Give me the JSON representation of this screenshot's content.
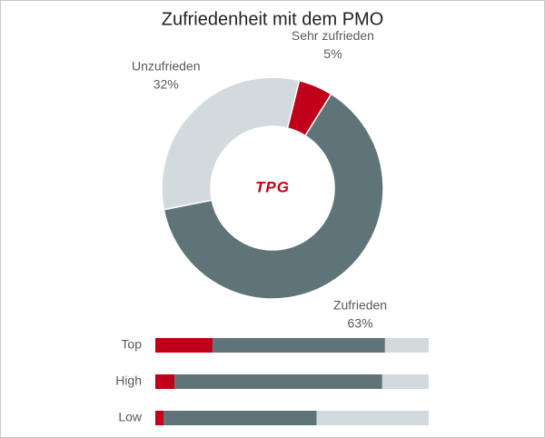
{
  "chart_data": [
    {
      "type": "pie",
      "title": "Zufriedenheit mit dem PMO",
      "logo": "TPG",
      "categories": [
        "Sehr zufrieden",
        "Zufrieden",
        "Unzufrieden"
      ],
      "values": [
        5,
        63,
        32
      ],
      "value_labels": [
        "5%",
        "63%",
        "32%"
      ],
      "colors": [
        "#c00018",
        "#5f7479",
        "#d3dadd"
      ],
      "start_angle": 14,
      "donut": true
    },
    {
      "type": "stacked-bar-horizontal",
      "categories": [
        "Top",
        "High",
        "Low"
      ],
      "series": [
        {
          "color": "#c00018",
          "values": [
            21,
            7,
            3
          ]
        },
        {
          "color": "#5f7479",
          "values": [
            63,
            76,
            56
          ]
        },
        {
          "color": "#d3dadd",
          "values": [
            16,
            17,
            41
          ]
        }
      ],
      "xlim": [
        0,
        100
      ]
    }
  ]
}
